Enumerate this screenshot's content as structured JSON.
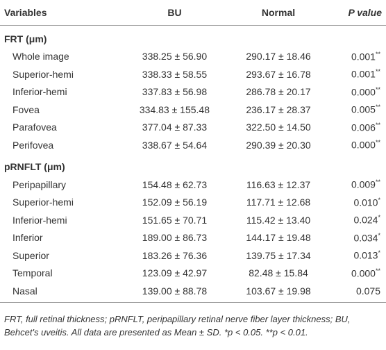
{
  "table": {
    "header": [
      "Variables",
      "BU",
      "Normal",
      "P value"
    ],
    "sections": [
      {
        "title": "FRT (μm)",
        "rows": [
          {
            "label": "Whole image",
            "bu": "338.25 ± 56.90",
            "normal": "290.17 ± 18.46",
            "p": "0.001",
            "sig": "**"
          },
          {
            "label": "Superior-hemi",
            "bu": "338.33 ± 58.55",
            "normal": "293.67 ± 16.78",
            "p": "0.001",
            "sig": "**"
          },
          {
            "label": "Inferior-hemi",
            "bu": "337.83 ± 56.98",
            "normal": "286.78 ± 20.17",
            "p": "0.000",
            "sig": "**"
          },
          {
            "label": "Fovea",
            "bu": "334.83 ± 155.48",
            "normal": "236.17 ± 28.37",
            "p": "0.005",
            "sig": "**"
          },
          {
            "label": "Parafovea",
            "bu": "377.04 ± 87.33",
            "normal": "322.50 ± 14.50",
            "p": "0.006",
            "sig": "**"
          },
          {
            "label": "Perifovea",
            "bu": "338.67 ± 54.64",
            "normal": "290.39 ± 20.30",
            "p": "0.000",
            "sig": "**"
          }
        ]
      },
      {
        "title": "pRNFLT (μm)",
        "rows": [
          {
            "label": "Peripapillary",
            "bu": "154.48 ± 62.73",
            "normal": "116.63 ± 12.37",
            "p": "0.009",
            "sig": "**"
          },
          {
            "label": "Superior-hemi",
            "bu": "152.09 ± 56.19",
            "normal": "117.71 ± 12.68",
            "p": "0.010",
            "sig": "*"
          },
          {
            "label": "Inferior-hemi",
            "bu": "151.65 ± 70.71",
            "normal": "115.42 ± 13.40",
            "p": "0.024",
            "sig": "*"
          },
          {
            "label": "Inferior",
            "bu": "189.00 ± 86.73",
            "normal": "144.17 ± 19.48",
            "p": "0.034",
            "sig": "*"
          },
          {
            "label": "Superior",
            "bu": "183.26 ± 76.36",
            "normal": "139.75 ± 17.34",
            "p": "0.013",
            "sig": "*"
          },
          {
            "label": "Temporal",
            "bu": "123.09 ± 42.97",
            "normal": "82.48 ± 15.84",
            "p": "0.000",
            "sig": "**"
          },
          {
            "label": "Nasal",
            "bu": "139.00 ± 88.78",
            "normal": "103.67 ± 19.98",
            "p": "0.075"
          }
        ]
      }
    ],
    "footnote": "FRT, full retinal thickness; pRNFLT, peripapillary retinal nerve fiber layer thickness; BU, Behcet's uveitis. All data are presented as Mean ± SD. *p < 0.05. **p < 0.01."
  }
}
